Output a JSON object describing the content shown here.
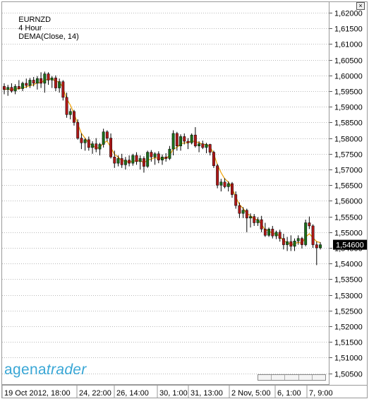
{
  "header": {
    "symbol": "EURNZD",
    "timeframe": "4 Hour",
    "indicator": "DEMA(Close, 14)",
    "close_glyph": "×"
  },
  "logo": {
    "part1": "agena",
    "part2": "trader"
  },
  "colors": {
    "grid": "#b9b9b9",
    "up": "#1a6e1a",
    "down": "#b01818",
    "wick": "#000000",
    "dema": "#f0a000",
    "price_box": "#000000",
    "price_text": "#ffffff"
  },
  "chart_data": {
    "type": "candlestick",
    "title": "EURNZD 4 Hour DEMA(Close, 14)",
    "ylim": [
      1.5045,
      1.6215
    ],
    "y_ticks": [
      "1,62000",
      "1,61500",
      "1,61000",
      "1,60500",
      "1,60000",
      "1,59500",
      "1,59000",
      "1,58500",
      "1,58000",
      "1,57500",
      "1,57000",
      "1,56500",
      "1,56000",
      "1,55500",
      "1,55000",
      "1,54500",
      "1,54000",
      "1,53500",
      "1,53000",
      "1,52500",
      "1,52000",
      "1,51500",
      "1,51000",
      "1,50500"
    ],
    "y_tick_values": [
      1.62,
      1.615,
      1.61,
      1.605,
      1.6,
      1.595,
      1.59,
      1.585,
      1.58,
      1.575,
      1.57,
      1.565,
      1.56,
      1.555,
      1.55,
      1.545,
      1.54,
      1.535,
      1.53,
      1.525,
      1.52,
      1.515,
      1.51,
      1.505
    ],
    "x_labels": [
      "19 Oct 2012, 18:00",
      "24, 22:00",
      "26, 14:00",
      "30, 1:00",
      "31, 13:00",
      "2 Nov, 5:00",
      "6, 1:00",
      "7, 9:00"
    ],
    "current_price": "1,54600",
    "candles": [
      {
        "o": 1.5965,
        "h": 1.5975,
        "l": 1.594,
        "c": 1.5955
      },
      {
        "o": 1.5955,
        "h": 1.597,
        "l": 1.5935,
        "c": 1.5962
      },
      {
        "o": 1.5962,
        "h": 1.5975,
        "l": 1.5945,
        "c": 1.595
      },
      {
        "o": 1.595,
        "h": 1.5972,
        "l": 1.594,
        "c": 1.5965
      },
      {
        "o": 1.5965,
        "h": 1.5985,
        "l": 1.5955,
        "c": 1.5958
      },
      {
        "o": 1.5958,
        "h": 1.598,
        "l": 1.595,
        "c": 1.5975
      },
      {
        "o": 1.5975,
        "h": 1.599,
        "l": 1.596,
        "c": 1.5968
      },
      {
        "o": 1.5968,
        "h": 1.5992,
        "l": 1.596,
        "c": 1.5985
      },
      {
        "o": 1.5985,
        "h": 1.5995,
        "l": 1.5965,
        "c": 1.5975
      },
      {
        "o": 1.5975,
        "h": 1.5998,
        "l": 1.5955,
        "c": 1.599
      },
      {
        "o": 1.599,
        "h": 1.601,
        "l": 1.596,
        "c": 1.5975
      },
      {
        "o": 1.5975,
        "h": 1.6012,
        "l": 1.5945,
        "c": 1.6005
      },
      {
        "o": 1.6005,
        "h": 1.601,
        "l": 1.597,
        "c": 1.5985
      },
      {
        "o": 1.5985,
        "h": 1.5998,
        "l": 1.596,
        "c": 1.5992
      },
      {
        "o": 1.5992,
        "h": 1.6,
        "l": 1.595,
        "c": 1.596
      },
      {
        "o": 1.596,
        "h": 1.599,
        "l": 1.5945,
        "c": 1.598
      },
      {
        "o": 1.598,
        "h": 1.5985,
        "l": 1.592,
        "c": 1.593
      },
      {
        "o": 1.593,
        "h": 1.5945,
        "l": 1.5865,
        "c": 1.5875
      },
      {
        "o": 1.5875,
        "h": 1.5895,
        "l": 1.586,
        "c": 1.5885
      },
      {
        "o": 1.5885,
        "h": 1.589,
        "l": 1.584,
        "c": 1.585
      },
      {
        "o": 1.585,
        "h": 1.586,
        "l": 1.5795,
        "c": 1.58
      },
      {
        "o": 1.58,
        "h": 1.5815,
        "l": 1.5765,
        "c": 1.5785
      },
      {
        "o": 1.5785,
        "h": 1.58,
        "l": 1.576,
        "c": 1.5795
      },
      {
        "o": 1.5795,
        "h": 1.5805,
        "l": 1.576,
        "c": 1.577
      },
      {
        "o": 1.577,
        "h": 1.579,
        "l": 1.575,
        "c": 1.5782
      },
      {
        "o": 1.5782,
        "h": 1.58,
        "l": 1.5755,
        "c": 1.5765
      },
      {
        "o": 1.5765,
        "h": 1.5785,
        "l": 1.5745,
        "c": 1.578
      },
      {
        "o": 1.578,
        "h": 1.583,
        "l": 1.577,
        "c": 1.582
      },
      {
        "o": 1.582,
        "h": 1.5825,
        "l": 1.579,
        "c": 1.58
      },
      {
        "o": 1.58,
        "h": 1.5815,
        "l": 1.5735,
        "c": 1.574
      },
      {
        "o": 1.574,
        "h": 1.576,
        "l": 1.5705,
        "c": 1.572
      },
      {
        "o": 1.572,
        "h": 1.5745,
        "l": 1.571,
        "c": 1.5735
      },
      {
        "o": 1.5735,
        "h": 1.575,
        "l": 1.5705,
        "c": 1.5715
      },
      {
        "o": 1.5715,
        "h": 1.574,
        "l": 1.57,
        "c": 1.573
      },
      {
        "o": 1.573,
        "h": 1.5745,
        "l": 1.571,
        "c": 1.572
      },
      {
        "o": 1.572,
        "h": 1.575,
        "l": 1.5712,
        "c": 1.5745
      },
      {
        "o": 1.5745,
        "h": 1.5755,
        "l": 1.5715,
        "c": 1.5725
      },
      {
        "o": 1.5725,
        "h": 1.5745,
        "l": 1.57,
        "c": 1.5735
      },
      {
        "o": 1.5735,
        "h": 1.5742,
        "l": 1.569,
        "c": 1.571
      },
      {
        "o": 1.571,
        "h": 1.576,
        "l": 1.5705,
        "c": 1.5755
      },
      {
        "o": 1.5755,
        "h": 1.5762,
        "l": 1.5725,
        "c": 1.574
      },
      {
        "o": 1.574,
        "h": 1.5755,
        "l": 1.5715,
        "c": 1.575
      },
      {
        "o": 1.575,
        "h": 1.5758,
        "l": 1.572,
        "c": 1.573
      },
      {
        "o": 1.573,
        "h": 1.5748,
        "l": 1.5715,
        "c": 1.574
      },
      {
        "o": 1.574,
        "h": 1.5752,
        "l": 1.5725,
        "c": 1.5735
      },
      {
        "o": 1.5735,
        "h": 1.5775,
        "l": 1.573,
        "c": 1.5765
      },
      {
        "o": 1.5765,
        "h": 1.5825,
        "l": 1.5745,
        "c": 1.5815
      },
      {
        "o": 1.5815,
        "h": 1.582,
        "l": 1.576,
        "c": 1.5775
      },
      {
        "o": 1.5775,
        "h": 1.5812,
        "l": 1.576,
        "c": 1.5805
      },
      {
        "o": 1.5805,
        "h": 1.5815,
        "l": 1.578,
        "c": 1.579
      },
      {
        "o": 1.579,
        "h": 1.58,
        "l": 1.5765,
        "c": 1.5785
      },
      {
        "o": 1.5785,
        "h": 1.5815,
        "l": 1.578,
        "c": 1.581
      },
      {
        "o": 1.581,
        "h": 1.5835,
        "l": 1.577,
        "c": 1.5775
      },
      {
        "o": 1.5775,
        "h": 1.579,
        "l": 1.5755,
        "c": 1.5782
      },
      {
        "o": 1.5782,
        "h": 1.5792,
        "l": 1.5765,
        "c": 1.577
      },
      {
        "o": 1.577,
        "h": 1.5785,
        "l": 1.5752,
        "c": 1.578
      },
      {
        "o": 1.578,
        "h": 1.5782,
        "l": 1.5745,
        "c": 1.5755
      },
      {
        "o": 1.5755,
        "h": 1.576,
        "l": 1.5705,
        "c": 1.5712
      },
      {
        "o": 1.5712,
        "h": 1.5718,
        "l": 1.564,
        "c": 1.565
      },
      {
        "o": 1.565,
        "h": 1.567,
        "l": 1.563,
        "c": 1.566
      },
      {
        "o": 1.566,
        "h": 1.5672,
        "l": 1.564,
        "c": 1.5645
      },
      {
        "o": 1.5645,
        "h": 1.5662,
        "l": 1.563,
        "c": 1.5655
      },
      {
        "o": 1.5655,
        "h": 1.566,
        "l": 1.561,
        "c": 1.562
      },
      {
        "o": 1.562,
        "h": 1.563,
        "l": 1.5575,
        "c": 1.5585
      },
      {
        "o": 1.5585,
        "h": 1.5595,
        "l": 1.5545,
        "c": 1.556
      },
      {
        "o": 1.556,
        "h": 1.558,
        "l": 1.5545,
        "c": 1.557
      },
      {
        "o": 1.557,
        "h": 1.5575,
        "l": 1.55,
        "c": 1.5545
      },
      {
        "o": 1.5545,
        "h": 1.556,
        "l": 1.5515,
        "c": 1.555
      },
      {
        "o": 1.555,
        "h": 1.5558,
        "l": 1.552,
        "c": 1.553
      },
      {
        "o": 1.553,
        "h": 1.5548,
        "l": 1.552,
        "c": 1.554
      },
      {
        "o": 1.554,
        "h": 1.5552,
        "l": 1.55,
        "c": 1.551
      },
      {
        "o": 1.551,
        "h": 1.553,
        "l": 1.5485,
        "c": 1.549
      },
      {
        "o": 1.549,
        "h": 1.5515,
        "l": 1.5485,
        "c": 1.551
      },
      {
        "o": 1.551,
        "h": 1.552,
        "l": 1.548,
        "c": 1.5488
      },
      {
        "o": 1.5488,
        "h": 1.5505,
        "l": 1.5478,
        "c": 1.55
      },
      {
        "o": 1.55,
        "h": 1.5508,
        "l": 1.547,
        "c": 1.548
      },
      {
        "o": 1.548,
        "h": 1.5495,
        "l": 1.5445,
        "c": 1.546
      },
      {
        "o": 1.546,
        "h": 1.5485,
        "l": 1.544,
        "c": 1.547
      },
      {
        "o": 1.547,
        "h": 1.549,
        "l": 1.544,
        "c": 1.5455
      },
      {
        "o": 1.5455,
        "h": 1.548,
        "l": 1.544,
        "c": 1.5472
      },
      {
        "o": 1.5472,
        "h": 1.549,
        "l": 1.546,
        "c": 1.548
      },
      {
        "o": 1.548,
        "h": 1.5485,
        "l": 1.5448,
        "c": 1.546
      },
      {
        "o": 1.546,
        "h": 1.554,
        "l": 1.5455,
        "c": 1.553
      },
      {
        "o": 1.553,
        "h": 1.555,
        "l": 1.551,
        "c": 1.552
      },
      {
        "o": 1.552,
        "h": 1.5525,
        "l": 1.545,
        "c": 1.546
      },
      {
        "o": 1.546,
        "h": 1.547,
        "l": 1.5395,
        "c": 1.545
      },
      {
        "o": 1.545,
        "h": 1.5468,
        "l": 1.5445,
        "c": 1.546
      }
    ],
    "dema": [
      1.5955,
      1.5956,
      1.5954,
      1.5957,
      1.5957,
      1.5961,
      1.5963,
      1.5968,
      1.597,
      1.5977,
      1.5976,
      1.5986,
      1.5987,
      1.599,
      1.598,
      1.598,
      1.596,
      1.5925,
      1.5905,
      1.5878,
      1.5845,
      1.5815,
      1.58,
      1.5783,
      1.5778,
      1.5768,
      1.577,
      1.5785,
      1.579,
      1.577,
      1.5748,
      1.574,
      1.5728,
      1.5727,
      1.5722,
      1.5728,
      1.5726,
      1.5729,
      1.5721,
      1.573,
      1.5733,
      1.5738,
      1.5735,
      1.5736,
      1.5735,
      1.5745,
      1.5765,
      1.577,
      1.5782,
      1.5785,
      1.5785,
      1.5792,
      1.5788,
      1.5786,
      1.578,
      1.578,
      1.5772,
      1.575,
      1.5715,
      1.569,
      1.567,
      1.566,
      1.564,
      1.5612,
      1.5588,
      1.5576,
      1.556,
      1.5553,
      1.5542,
      1.554,
      1.5525,
      1.5507,
      1.5505,
      1.5495,
      1.5495,
      1.5487,
      1.5472,
      1.5468,
      1.546,
      1.5463,
      1.5468,
      1.5464,
      1.5485,
      1.5495,
      1.5482,
      1.547,
      1.5467
    ]
  }
}
